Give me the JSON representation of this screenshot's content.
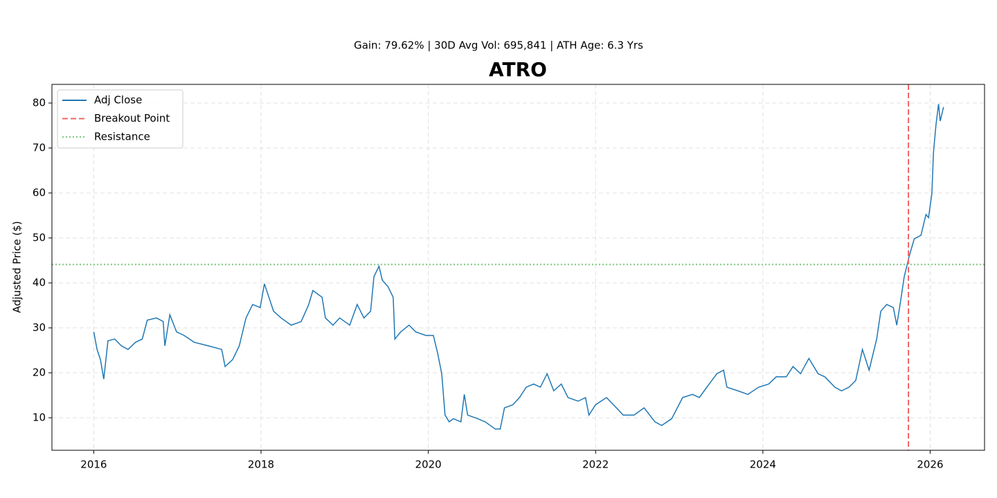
{
  "chart_data": {
    "type": "line",
    "title": "ATRO",
    "subtitle": "Gain: 79.62% | 30D Avg Vol: 695,841 | ATH Age: 6.3 Yrs",
    "y_label": "Adjusted Price ($)",
    "x": [
      2016.0,
      2016.04,
      2016.08,
      2016.12,
      2016.17,
      2016.25,
      2016.33,
      2016.41,
      2016.5,
      2016.58,
      2016.64,
      2016.75,
      2016.83,
      2016.85,
      2016.91,
      2016.99,
      2017.08,
      2017.2,
      2017.37,
      2017.53,
      2017.57,
      2017.66,
      2017.74,
      2017.82,
      2017.9,
      2017.99,
      2018.04,
      2018.15,
      2018.24,
      2018.36,
      2018.48,
      2018.57,
      2018.62,
      2018.73,
      2018.77,
      2018.86,
      2018.94,
      2019.06,
      2019.15,
      2019.23,
      2019.31,
      2019.35,
      2019.41,
      2019.45,
      2019.52,
      2019.58,
      2019.6,
      2019.67,
      2019.77,
      2019.85,
      2019.97,
      2020.06,
      2020.11,
      2020.16,
      2020.2,
      2020.25,
      2020.3,
      2020.39,
      2020.43,
      2020.47,
      2020.59,
      2020.68,
      2020.8,
      2020.86,
      2020.91,
      2021.01,
      2021.09,
      2021.17,
      2021.26,
      2021.34,
      2021.42,
      2021.5,
      2021.59,
      2021.67,
      2021.79,
      2021.88,
      2021.92,
      2022.0,
      2022.13,
      2022.25,
      2022.33,
      2022.46,
      2022.58,
      2022.71,
      2022.79,
      2022.91,
      2023.04,
      2023.16,
      2023.24,
      2023.33,
      2023.45,
      2023.53,
      2023.57,
      2023.7,
      2023.82,
      2023.95,
      2024.07,
      2024.16,
      2024.28,
      2024.36,
      2024.45,
      2024.55,
      2024.66,
      2024.74,
      2024.86,
      2024.94,
      2025.03,
      2025.11,
      2025.19,
      2025.27,
      2025.36,
      2025.41,
      2025.48,
      2025.56,
      2025.6,
      2025.64,
      2025.69,
      2025.75,
      2025.81,
      2025.89,
      2025.95,
      2025.98,
      2026.02,
      2026.04,
      2026.07,
      2026.1,
      2026.12,
      2026.16
    ],
    "series": [
      {
        "name": "Adj Close",
        "color": "#1f77b4",
        "values": [
          29.1,
          25.2,
          22.9,
          18.6,
          27.1,
          27.5,
          26.0,
          25.2,
          26.8,
          27.5,
          31.7,
          32.2,
          31.4,
          26.0,
          32.9,
          29.1,
          28.3,
          26.8,
          26.0,
          25.2,
          21.4,
          22.9,
          26.0,
          32.2,
          35.2,
          34.5,
          39.8,
          33.7,
          32.2,
          30.6,
          31.4,
          35.2,
          38.3,
          36.8,
          32.2,
          30.6,
          32.2,
          30.6,
          35.2,
          32.2,
          33.7,
          41.4,
          43.7,
          40.6,
          39.1,
          36.8,
          27.5,
          29.1,
          30.6,
          29.1,
          28.3,
          28.3,
          24.5,
          19.8,
          10.6,
          9.1,
          9.8,
          9.1,
          15.2,
          10.6,
          9.8,
          9.1,
          7.5,
          7.5,
          12.2,
          12.9,
          14.5,
          16.8,
          17.5,
          16.8,
          19.8,
          16.0,
          17.5,
          14.5,
          13.7,
          14.5,
          10.6,
          12.9,
          14.5,
          12.2,
          10.6,
          10.6,
          12.2,
          9.1,
          8.3,
          9.8,
          14.5,
          15.2,
          14.5,
          16.8,
          19.8,
          20.6,
          16.8,
          16.0,
          15.2,
          16.8,
          17.5,
          19.1,
          19.1,
          21.4,
          19.8,
          23.2,
          19.8,
          19.1,
          16.8,
          16.0,
          16.8,
          18.3,
          25.2,
          20.6,
          27.5,
          33.7,
          35.2,
          34.5,
          30.6,
          35.2,
          41.4,
          46.0,
          49.8,
          50.6,
          55.2,
          54.5,
          59.8,
          69.1,
          75.2,
          79.8,
          76.0,
          79.1
        ]
      }
    ],
    "vlines": [
      {
        "name": "Breakout Point",
        "color": "#f26464",
        "x": 2025.74
      }
    ],
    "hlines": [
      {
        "name": "Resistance",
        "color": "#7cc47c",
        "y": 44.1
      }
    ],
    "xlim": [
      2015.5,
      2026.65
    ],
    "ylim": [
      2.77,
      84.15
    ],
    "xticks": [
      2016,
      2018,
      2020,
      2022,
      2024,
      2026
    ],
    "yticks": [
      10,
      20,
      30,
      40,
      50,
      60,
      70,
      80
    ],
    "grid": true,
    "legend": "upper-left"
  }
}
